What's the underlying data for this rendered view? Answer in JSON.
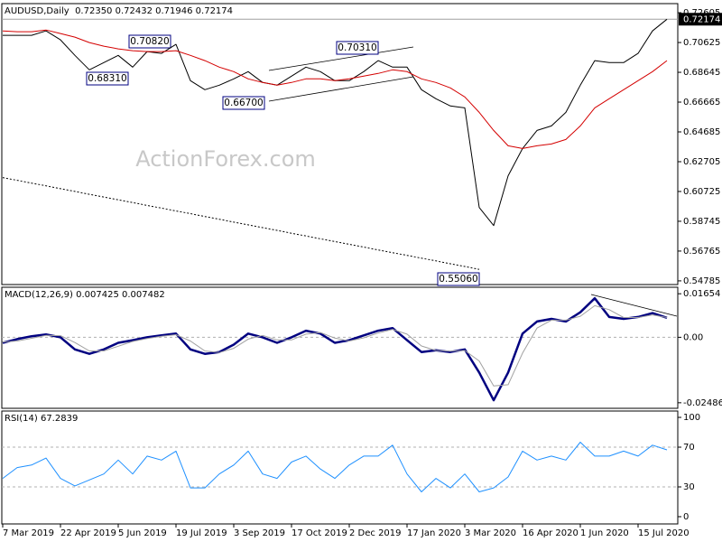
{
  "chart_data": [
    {
      "type": "line",
      "title": "AUDUSD,Daily  0.72350 0.72432 0.71946 0.72174",
      "watermark": "ActionForex.com",
      "ylim": [
        0.5454,
        0.7321
      ],
      "yticks": [
        0.72605,
        0.70625,
        0.68645,
        0.66665,
        0.64685,
        0.62705,
        0.60725,
        0.58745,
        0.56765,
        0.54785
      ],
      "last_price": 0.72174,
      "annotations": [
        "0.70820",
        "0.68310",
        "0.66700",
        "0.70310",
        "0.55060"
      ],
      "series": [
        {
          "color": "#000000",
          "width": 1,
          "style": "solid",
          "values": [
            0.711,
            0.711,
            0.711,
            0.714,
            0.708,
            0.6977,
            0.6881,
            0.6929,
            0.6977,
            0.6899,
            0.7002,
            0.699,
            0.705,
            0.6809,
            0.6749,
            0.6779,
            0.6821,
            0.6869,
            0.6797,
            0.6779,
            0.6839,
            0.6899,
            0.6869,
            0.6809,
            0.6809,
            0.6869,
            0.6942,
            0.6899,
            0.6899,
            0.6749,
            0.6689,
            0.6641,
            0.6628,
            0.5966,
            0.5846,
            0.6177,
            0.6358,
            0.6478,
            0.6508,
            0.6598,
            0.6779,
            0.6942,
            0.6929,
            0.6929,
            0.699,
            0.714,
            0.7217
          ]
        },
        {
          "color": "#d40000",
          "width": 1,
          "style": "solid",
          "values": [
            0.714,
            0.7134,
            0.7134,
            0.7146,
            0.7122,
            0.7098,
            0.7062,
            0.7038,
            0.702,
            0.7008,
            0.7002,
            0.7002,
            0.7008,
            0.6977,
            0.6942,
            0.6899,
            0.6869,
            0.6821,
            0.6797,
            0.6779,
            0.6797,
            0.6821,
            0.6821,
            0.6809,
            0.6821,
            0.6839,
            0.6857,
            0.6881,
            0.6869,
            0.6821,
            0.6797,
            0.6761,
            0.6701,
            0.6598,
            0.6478,
            0.6376,
            0.6358,
            0.6376,
            0.6388,
            0.6418,
            0.6508,
            0.6628,
            0.6689,
            0.6749,
            0.6809,
            0.6869,
            0.6942
          ]
        },
        {
          "color": "#000000",
          "width": 1,
          "style": "dotted",
          "values": [
            0.6165,
            0.6147,
            0.6128,
            0.611,
            0.6091,
            0.6073,
            0.6054,
            0.6036,
            0.6017,
            0.5999,
            0.598,
            0.5962,
            0.5943,
            0.5925,
            0.5906,
            0.5888,
            0.5869,
            0.5851,
            0.5832,
            0.5814,
            0.5795,
            0.5777,
            0.5758,
            0.574,
            0.5721,
            0.5703,
            0.5684,
            0.5666,
            0.5648,
            0.5629,
            0.5611,
            0.5592,
            0.5574,
            0.5555,
            null,
            null,
            null,
            null,
            null,
            null,
            null,
            null,
            null,
            null,
            null,
            null,
            null
          ]
        }
      ]
    },
    {
      "type": "line",
      "title": "MACD(12,26,9) 0.007425 0.007482",
      "ylim": [
        -0.02697,
        0.019
      ],
      "yticks": [
        0.01654,
        {
          "value": 0,
          "label": "0.00"
        },
        -0.02486
      ],
      "levels": [
        0
      ],
      "series": [
        {
          "color": "#000080",
          "width": 2.5,
          "style": "solid",
          "values": [
            -0.0021,
            -0.0007,
            0.0004,
            0.0011,
            0,
            -0.0046,
            -0.0063,
            -0.0046,
            -0.0021,
            -0.0011,
            0,
            0.0007,
            0.0014,
            -0.0046,
            -0.0063,
            -0.0056,
            -0.0028,
            0.0014,
            0,
            -0.0021,
            0,
            0.0025,
            0.0014,
            -0.0021,
            -0.0011,
            0.0007,
            0.0025,
            0.0035,
            -0.0011,
            -0.0056,
            -0.0049,
            -0.0056,
            -0.0046,
            -0.0134,
            -0.0239,
            -0.0134,
            0.0014,
            0.006,
            0.007,
            0.006,
            0.0095,
            0.0148,
            0.0077,
            0.007,
            0.0077,
            0.0092,
            0.0074
          ]
        },
        {
          "color": "#a0a0a0",
          "width": 1,
          "style": "solid",
          "values": [
            -0.0018,
            -0.0014,
            -0.0004,
            0.0007,
            0.0006,
            -0.002,
            -0.0052,
            -0.0052,
            -0.0034,
            -0.0016,
            -0.0005,
            0.0004,
            0.001,
            -0.0014,
            -0.0052,
            -0.0058,
            -0.0042,
            -0.0007,
            0.0007,
            -0.001,
            -0.001,
            0.0012,
            0.0018,
            -0.0003,
            -0.0014,
            -0.0002,
            0.0016,
            0.003,
            0.0012,
            -0.0033,
            -0.005,
            -0.0053,
            -0.005,
            -0.009,
            -0.0185,
            -0.018,
            -0.006,
            0.0035,
            0.0065,
            0.0065,
            0.008,
            0.012,
            0.0105,
            0.0075,
            0.0075,
            0.0085,
            0.0075
          ]
        }
      ]
    },
    {
      "type": "line",
      "title": "RSI(14) 67.2839",
      "ylim": [
        -7.3,
        106.4
      ],
      "yticks": [
        100,
        70,
        30,
        0
      ],
      "levels": [
        70,
        30
      ],
      "categories": [
        "7 Mar 2019",
        null,
        null,
        null,
        "22 Apr 2019",
        null,
        null,
        null,
        "5 Jun 2019",
        null,
        null,
        null,
        "19 Jul 2019",
        null,
        null,
        null,
        "3 Sep 2019",
        null,
        null,
        null,
        "17 Oct 2019",
        null,
        null,
        null,
        "2 Dec 2019",
        null,
        null,
        null,
        "17 Jan 2020",
        null,
        null,
        null,
        "3 Mar 2020",
        null,
        null,
        null,
        "16 Apr 2020",
        null,
        null,
        null,
        "1 Jun 2020",
        null,
        null,
        null,
        "15 Jul 2020",
        null,
        null
      ],
      "series": [
        {
          "color": "#1e90ff",
          "width": 1,
          "style": "solid",
          "values": [
            38.5,
            49.5,
            52,
            59,
            38.5,
            31,
            37,
            43,
            57,
            43,
            61,
            57,
            66,
            29,
            29,
            43,
            52,
            66,
            43,
            38.5,
            55,
            61,
            48,
            38.5,
            52,
            61,
            61,
            72,
            43,
            25,
            38.5,
            29,
            43,
            25,
            29,
            40,
            66,
            57,
            61,
            57,
            75,
            61,
            61,
            66,
            61,
            72,
            67.2839
          ]
        }
      ]
    }
  ]
}
